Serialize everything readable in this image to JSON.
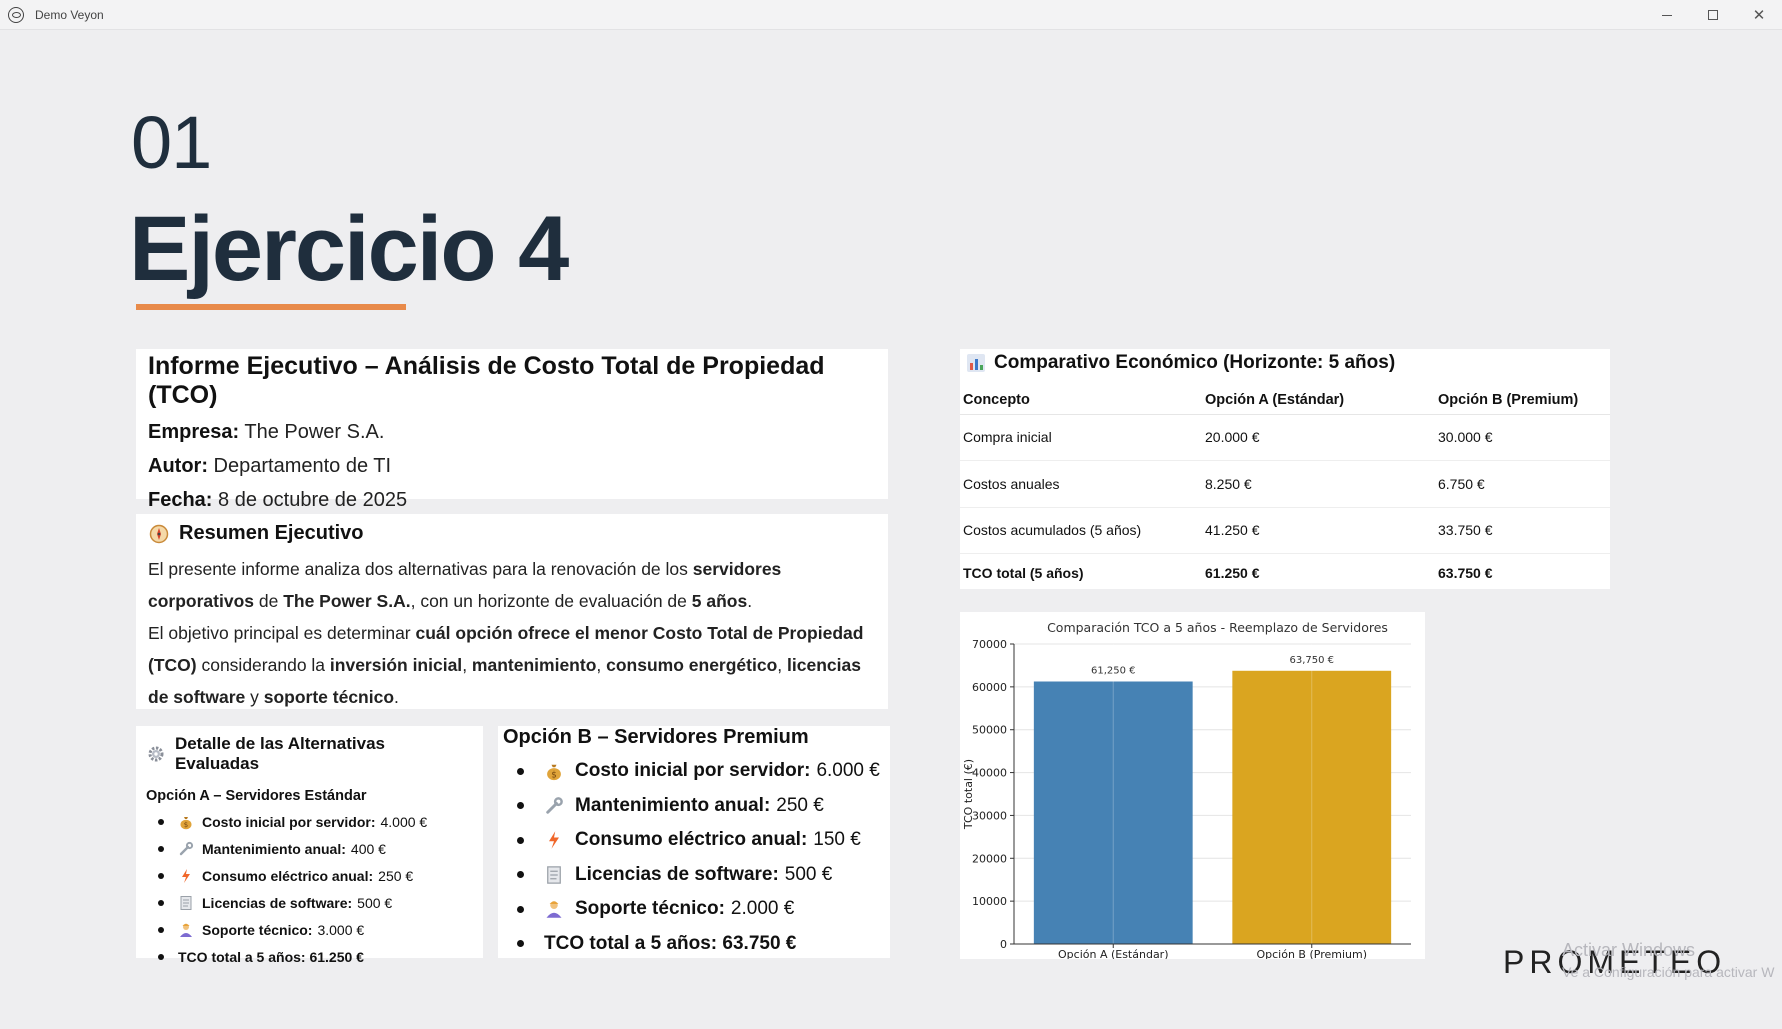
{
  "window": {
    "title": "Demo Veyon",
    "minimize": "minimize",
    "maximize": "maximize",
    "close": "✕"
  },
  "slide": {
    "number": "01",
    "title": "Ejercicio 4"
  },
  "informe": {
    "heading": "Informe Ejecutivo – Análisis de Costo Total de Propiedad (TCO)",
    "empresa_label": "Empresa:",
    "empresa_value": "The Power S.A.",
    "autor_label": "Autor:",
    "autor_value": "Departamento de TI",
    "fecha_label": "Fecha:",
    "fecha_value": "8 de octubre de 2025"
  },
  "resumen": {
    "icon": "compass-icon",
    "heading": "Resumen Ejecutivo",
    "p1_a": "El presente informe analiza dos alternativas para la renovación de los ",
    "p1_b": "servidores corporativos",
    "p1_c": " de ",
    "p1_d": "The Power S.A.",
    "p1_e": ", con un horizonte de evaluación de ",
    "p1_f": "5 años",
    "p1_g": ".",
    "p2_a": "El objetivo principal es determinar ",
    "p2_b": "cuál opción ofrece el menor Costo Total de Propiedad (TCO)",
    "p2_c": " considerando la ",
    "p2_d": "inversión inicial",
    "p2_e": ", ",
    "p2_f": "mantenimiento",
    "p2_g": ", ",
    "p2_h": "consumo energético",
    "p2_i": ", ",
    "p2_j": "licencias de software",
    "p2_k": " y ",
    "p2_l": "soporte técnico",
    "p2_m": "."
  },
  "detalle": {
    "icon": "gear-icon",
    "heading": "Detalle de las Alternativas Evaluadas",
    "optionA": {
      "title": "Opción A – Servidores Estándar",
      "items": [
        {
          "icon": "money-bag-icon",
          "label": "Costo inicial por servidor:",
          "value": "4.000 €"
        },
        {
          "icon": "wrench-icon",
          "label": "Mantenimiento anual:",
          "value": "400 €"
        },
        {
          "icon": "lightning-icon",
          "label": "Consumo eléctrico anual:",
          "value": "250 €"
        },
        {
          "icon": "document-icon",
          "label": "Licencias de software:",
          "value": "500 €"
        },
        {
          "icon": "technician-icon",
          "label": "Soporte técnico:",
          "value": "3.000 €"
        },
        {
          "icon": "",
          "label": "TCO total a 5 años: 61.250 €",
          "value": ""
        }
      ]
    }
  },
  "optionB": {
    "title": "Opción B – Servidores Premium",
    "items": [
      {
        "icon": "money-bag-icon",
        "label": "Costo inicial por servidor:",
        "value": "6.000 €"
      },
      {
        "icon": "wrench-icon",
        "label": "Mantenimiento anual:",
        "value": "250 €"
      },
      {
        "icon": "lightning-icon",
        "label": "Consumo eléctrico anual:",
        "value": "150 €"
      },
      {
        "icon": "document-icon",
        "label": "Licencias de software:",
        "value": "500 €"
      },
      {
        "icon": "technician-icon",
        "label": "Soporte técnico:",
        "value": "2.000 €"
      },
      {
        "icon": "",
        "label": "TCO total a 5 años: 63.750 €",
        "value": ""
      }
    ]
  },
  "comparativo": {
    "icon": "bar-chart-icon",
    "heading": "Comparativo Económico (Horizonte: 5 años)",
    "columns": [
      "Concepto",
      "Opción A (Estándar)",
      "Opción B (Premium)"
    ],
    "rows": [
      [
        "Compra inicial",
        "20.000 €",
        "30.000 €"
      ],
      [
        "Costos anuales",
        "8.250 €",
        "6.750 €"
      ],
      [
        "Costos acumulados (5 años)",
        "41.250 €",
        "33.750 €"
      ],
      [
        "TCO total (5 años)",
        "61.250 €",
        "63.750 €"
      ]
    ]
  },
  "chart_data": {
    "type": "bar",
    "title": "Comparación TCO a 5 años - Reemplazo de Servidores",
    "xlabel": "",
    "ylabel": "TCO total (€)",
    "categories": [
      "Opción A (Estándar)",
      "Opción B (Premium)"
    ],
    "values": [
      61250,
      63750
    ],
    "data_labels": [
      "61,250 €",
      "63,750 €"
    ],
    "colors": [
      "#4682b4",
      "#daa520"
    ],
    "ylim": [
      0,
      70000
    ],
    "yticks": [
      0,
      10000,
      20000,
      30000,
      40000,
      50000,
      60000,
      70000
    ],
    "grid": true,
    "legend": "none"
  },
  "branding": {
    "logo": "PROMETEO",
    "watermark_line1": "Activar Windows",
    "watermark_line2": "Ve a Configuración para activar W"
  }
}
